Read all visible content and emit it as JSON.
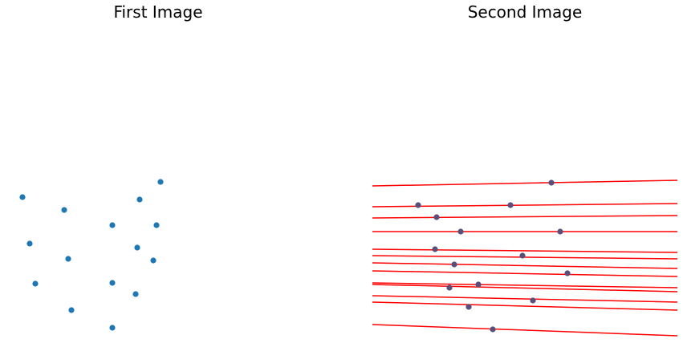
{
  "colors": {
    "point": "#1f77b4",
    "line": "#ff0000",
    "point_on_line": "#5a4f7a"
  },
  "chart_data": [
    {
      "type": "scatter",
      "title": "First Image",
      "xlim": [
        0,
        380
      ],
      "ylim": [
        0,
        380
      ],
      "grid": false,
      "axes_visible": false,
      "points": [
        [
          20,
          171
        ],
        [
          72,
          155
        ],
        [
          192,
          190
        ],
        [
          166,
          168
        ],
        [
          132,
          136
        ],
        [
          187,
          136
        ],
        [
          29,
          113
        ],
        [
          77,
          94
        ],
        [
          163,
          108
        ],
        [
          183,
          92
        ],
        [
          36,
          63
        ],
        [
          132,
          64
        ],
        [
          161,
          50
        ],
        [
          81,
          30
        ],
        [
          132,
          8
        ]
      ]
    },
    {
      "type": "line",
      "title": "Second Image",
      "xlim": [
        0,
        380
      ],
      "ylim": [
        0,
        380
      ],
      "grid": false,
      "axes_visible": false,
      "points": [
        [
          223,
          189
        ],
        [
          57,
          161
        ],
        [
          172,
          161
        ],
        [
          80,
          146
        ],
        [
          110,
          128
        ],
        [
          234,
          128
        ],
        [
          78,
          106
        ],
        [
          187,
          98
        ],
        [
          102,
          87
        ],
        [
          243,
          76
        ],
        [
          96,
          58
        ],
        [
          132,
          62
        ],
        [
          200,
          42
        ],
        [
          120,
          34
        ],
        [
          150,
          6
        ]
      ],
      "lines": [
        [
          [
            0,
            185
          ],
          [
            380,
            192
          ]
        ],
        [
          [
            0,
            159
          ],
          [
            380,
            163
          ]
        ],
        [
          [
            0,
            145
          ],
          [
            380,
            148
          ]
        ],
        [
          [
            0,
            128
          ],
          [
            380,
            128
          ]
        ],
        [
          [
            0,
            106
          ],
          [
            380,
            102
          ]
        ],
        [
          [
            0,
            98
          ],
          [
            380,
            94
          ]
        ],
        [
          [
            0,
            89
          ],
          [
            380,
            82
          ]
        ],
        [
          [
            0,
            79
          ],
          [
            380,
            72
          ]
        ],
        [
          [
            0,
            64
          ],
          [
            380,
            58
          ]
        ],
        [
          [
            0,
            62
          ],
          [
            380,
            53
          ]
        ],
        [
          [
            0,
            48
          ],
          [
            380,
            40
          ]
        ],
        [
          [
            0,
            40
          ],
          [
            380,
            30
          ]
        ],
        [
          [
            0,
            12
          ],
          [
            380,
            -2
          ]
        ]
      ]
    }
  ]
}
